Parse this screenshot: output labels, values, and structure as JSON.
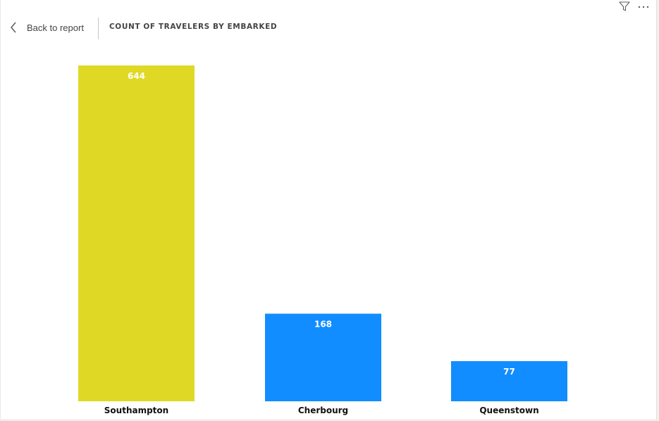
{
  "header": {
    "back_label": "Back to report",
    "title": "COUNT OF TRAVELERS BY EMBARKED",
    "icons": [
      "chevron-left-icon",
      "filter-icon",
      "more-options-icon"
    ]
  },
  "colors": {
    "highlight": "#dfd926",
    "default": "#118dff",
    "value_label": "#ffffff",
    "category_label": "#111111"
  },
  "chart_data": {
    "type": "bar",
    "title": "COUNT OF TRAVELERS BY EMBARKED",
    "categories": [
      "Southampton",
      "Cherbourg",
      "Queenstown"
    ],
    "values": [
      644,
      168,
      77
    ],
    "highlighted": [
      "Southampton"
    ],
    "ylim": [
      0,
      644
    ],
    "grid": false,
    "legend": "none",
    "xlabel": "",
    "ylabel": ""
  }
}
